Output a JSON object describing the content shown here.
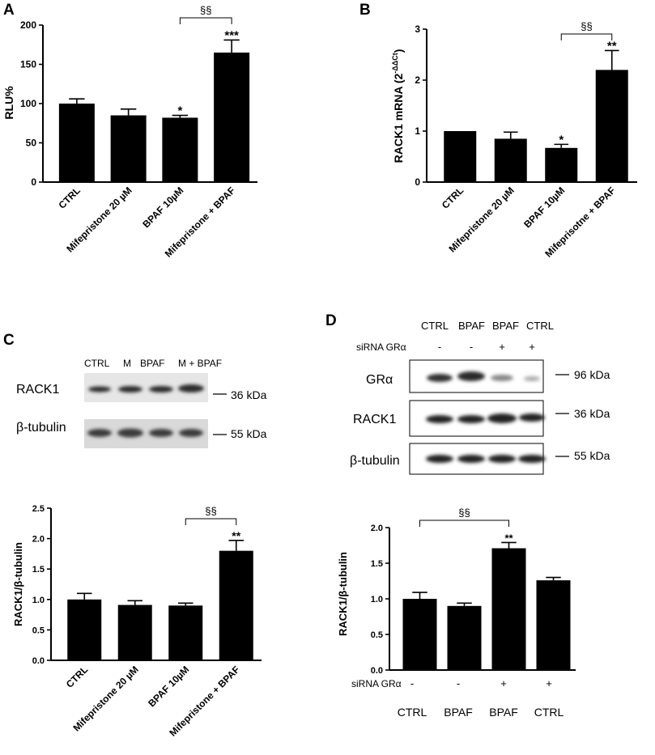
{
  "figure": {
    "panels": {
      "A": {
        "letter": "A",
        "ylabel": "RLU%"
      },
      "B": {
        "letter": "B",
        "ylabel_main": "RACK1 mRNA (2",
        "ylabel_sup": "-ΔΔCt",
        "ylabel_close": ")"
      },
      "C": {
        "letter": "C",
        "blot_header": [
          "CTRL",
          "M",
          "BPAF",
          "M + BPAF"
        ],
        "blot_rows": [
          {
            "label": "RACK1",
            "kda": "36 kDa"
          },
          {
            "label": "β-tubulin",
            "kda": "55 kDa"
          }
        ],
        "ylabel": "RACK1/β-tubulin"
      },
      "D": {
        "letter": "D",
        "blot_header": [
          "CTRL",
          "BPAF",
          "BPAF",
          "CTRL"
        ],
        "sirna_label": "siRNA GRα",
        "sirna_marks": [
          "-",
          "-",
          "+",
          "+"
        ],
        "blot_rows": [
          {
            "label": "GRα",
            "kda": "96 kDa"
          },
          {
            "label": "RACK1",
            "kda": "36 kDa"
          },
          {
            "label": "β-tubulin",
            "kda": "55 kDa"
          }
        ],
        "ylabel": "RACK1/β-tubulin",
        "bottom_sirna_label": "siRNA GRα",
        "bottom_marks": [
          "-",
          "-",
          "+",
          "+"
        ],
        "bottom_groups": [
          "CTRL",
          "BPAF",
          "BPAF",
          "CTRL"
        ]
      }
    }
  },
  "chart_data": [
    {
      "panel": "A",
      "type": "bar",
      "categories": [
        "CTRL",
        "Mifepristone 20 µM",
        "BPAF 10µM",
        "Mifepristone + BPAF"
      ],
      "values": [
        100,
        85,
        82,
        165
      ],
      "errors": [
        6,
        8,
        3,
        16
      ],
      "sig": [
        "",
        "",
        "*",
        "***"
      ],
      "bracket": {
        "from": 2,
        "to": 3,
        "label": "§§"
      },
      "ylim": [
        0,
        200
      ],
      "yticks": [
        "0",
        "50",
        "100",
        "150",
        "200"
      ],
      "ytick_values": [
        0,
        50,
        100,
        150,
        200
      ],
      "ylabel": "RLU%"
    },
    {
      "panel": "B",
      "type": "bar",
      "categories": [
        "CTRL",
        "Mifepristone 20 µM",
        "BPAF 10µM",
        "Mifeprisotne + BPAF"
      ],
      "values": [
        1.0,
        0.85,
        0.67,
        2.2
      ],
      "errors": [
        0,
        0.13,
        0.07,
        0.38
      ],
      "sig": [
        "",
        "",
        "*",
        "**"
      ],
      "bracket": {
        "from": 2,
        "to": 3,
        "label": "§§"
      },
      "ylim": [
        0,
        3
      ],
      "yticks": [
        "0",
        "1",
        "2",
        "3"
      ],
      "ytick_values": [
        0,
        1,
        2,
        3
      ],
      "ylabel": "RACK1 mRNA (2-ΔΔCt)"
    },
    {
      "panel": "C",
      "type": "bar",
      "categories": [
        "CTRL",
        "Mifepristone 20 µM",
        "BPAF 10µM",
        "Mifepristone + BPAF"
      ],
      "values": [
        1.0,
        0.91,
        0.9,
        1.8
      ],
      "errors": [
        0.1,
        0.07,
        0.04,
        0.17
      ],
      "sig": [
        "",
        "",
        "",
        "**"
      ],
      "bracket": {
        "from": 2,
        "to": 3,
        "label": "§§"
      },
      "ylim": [
        0,
        2.5
      ],
      "yticks": [
        "0.0",
        "0.5",
        "1.0",
        "1.5",
        "2.0",
        "2.5"
      ],
      "ytick_values": [
        0,
        0.5,
        1.0,
        1.5,
        2.0,
        2.5
      ],
      "ylabel": "RACK1/β-tubulin"
    },
    {
      "panel": "D",
      "type": "bar",
      "categories": [
        "CTRL",
        "BPAF",
        "BPAF",
        "CTRL"
      ],
      "values": [
        1.0,
        0.9,
        1.71,
        1.26
      ],
      "errors": [
        0.09,
        0.04,
        0.08,
        0.04
      ],
      "sig": [
        "",
        "",
        "**",
        ""
      ],
      "bracket": {
        "from": 0,
        "to": 2,
        "label": "§§"
      },
      "ylim": [
        0,
        2.0
      ],
      "yticks": [
        "0.0",
        "0.5",
        "1.0",
        "1.5",
        "2.0"
      ],
      "ytick_values": [
        0,
        0.5,
        1.0,
        1.5,
        2.0
      ],
      "ylabel": "RACK1/β-tubulin"
    }
  ]
}
